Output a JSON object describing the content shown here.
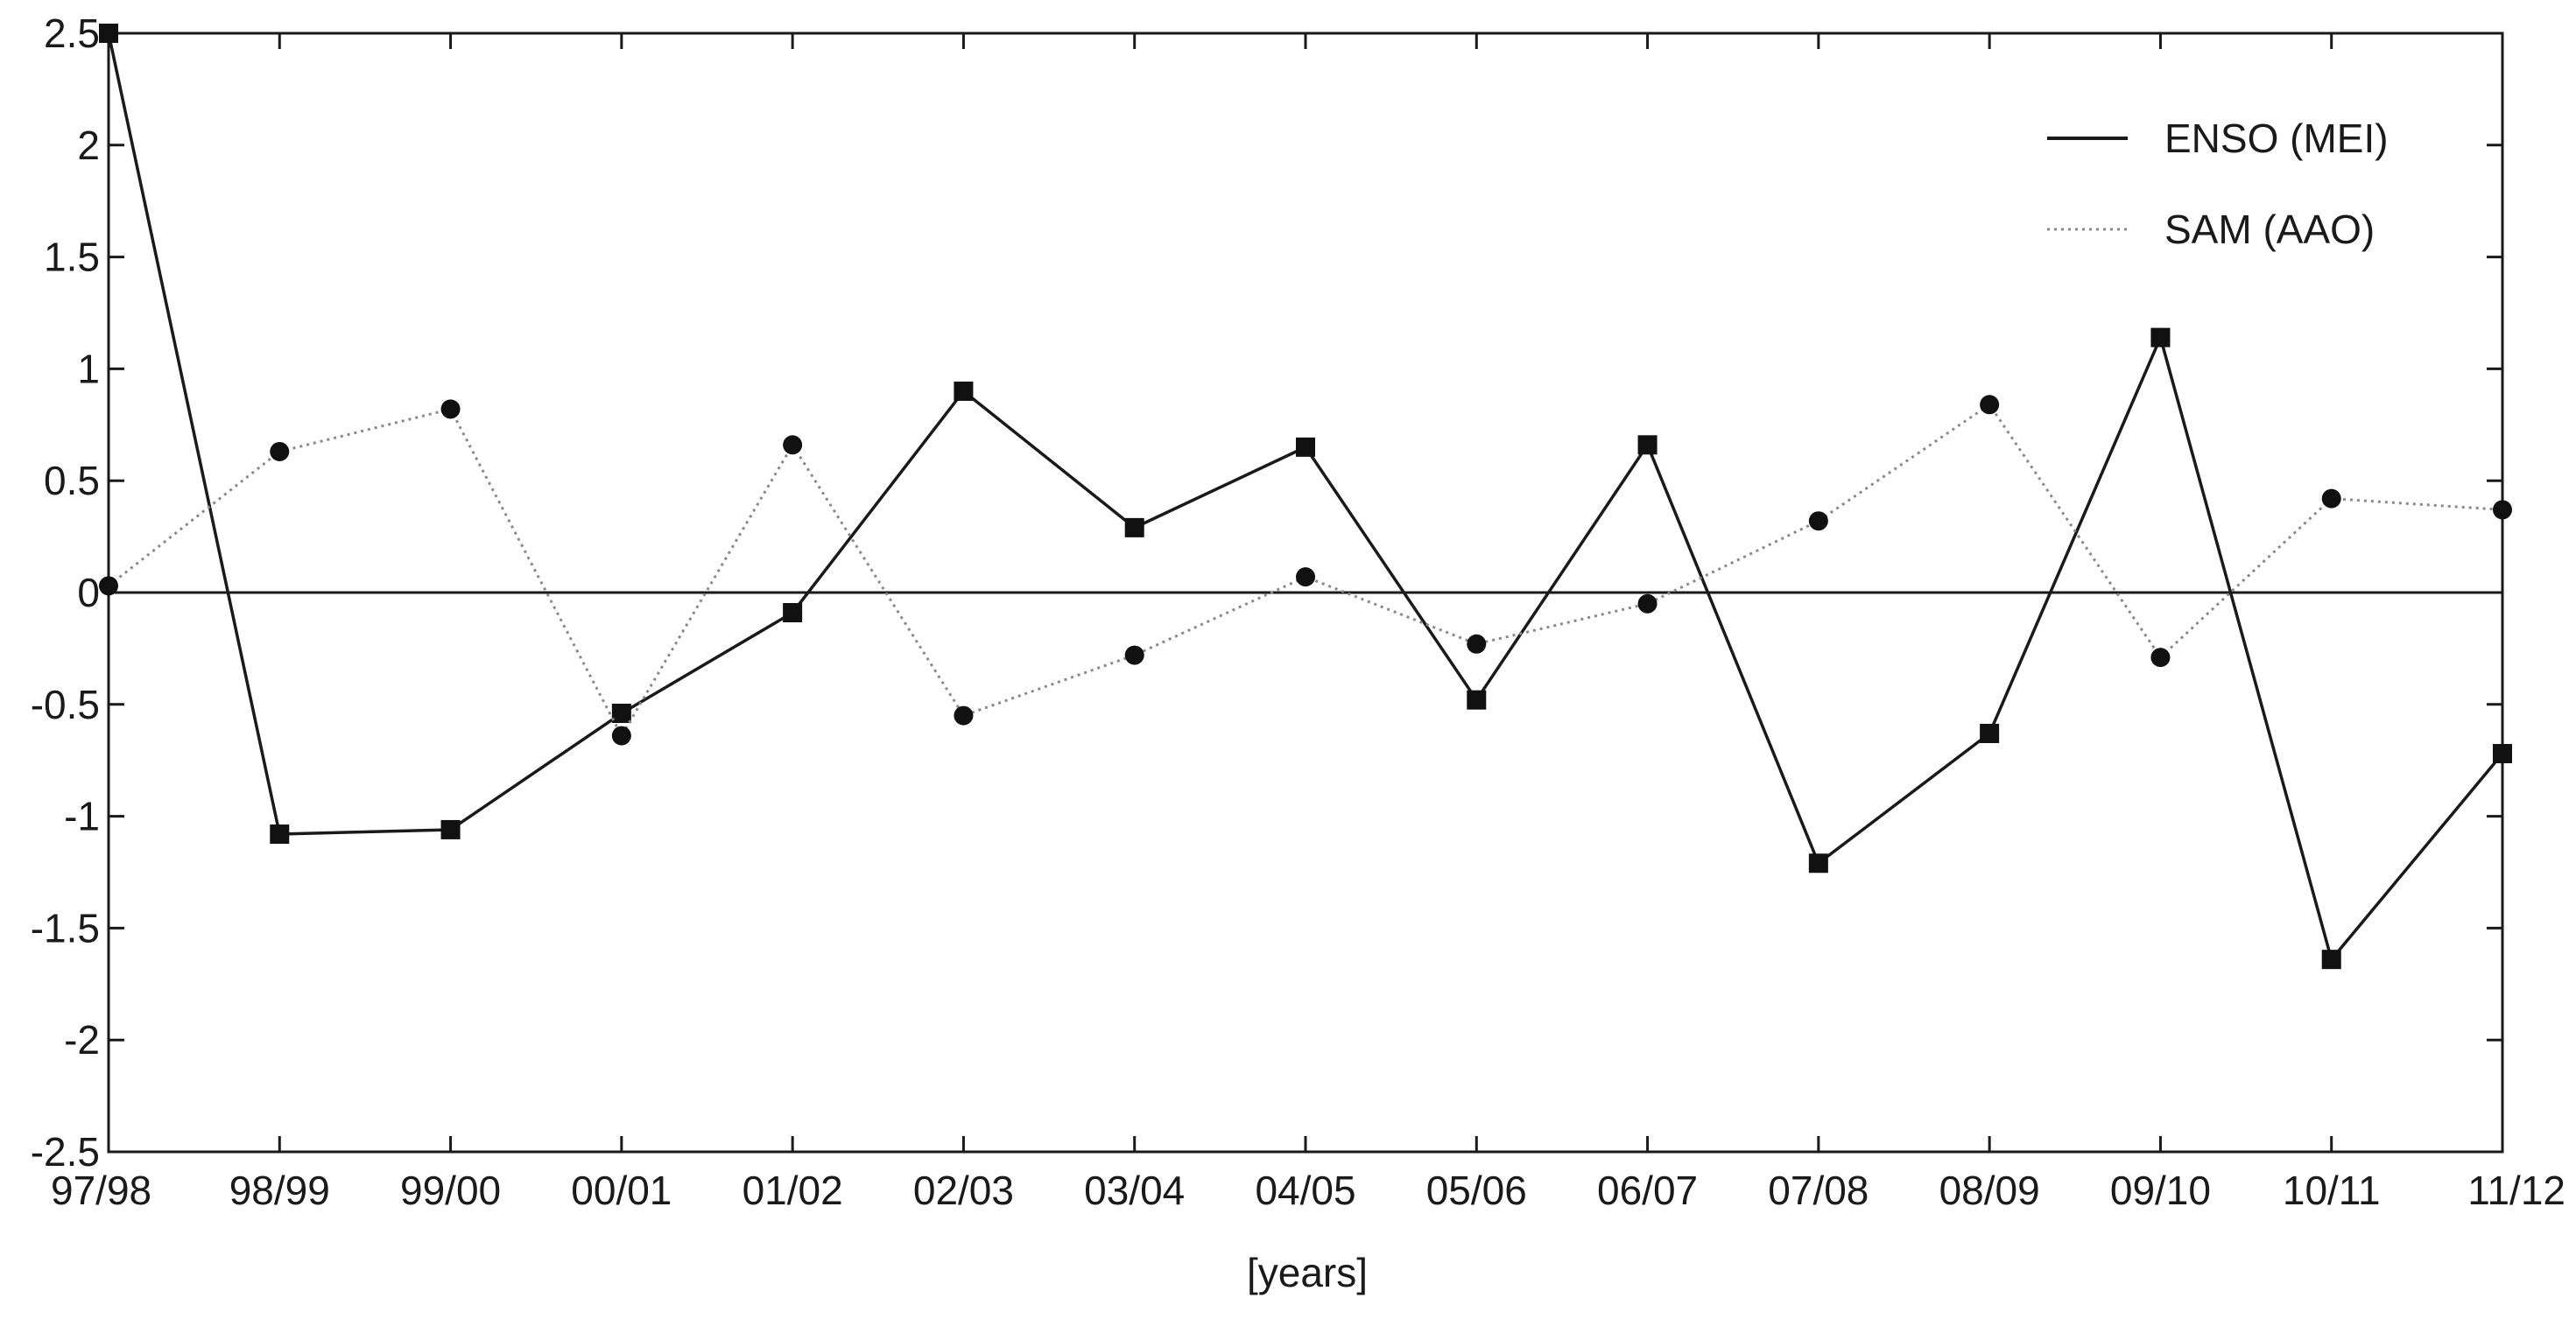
{
  "chart_data": {
    "type": "line",
    "title": "",
    "xlabel": "[years]",
    "ylabel": "",
    "categories": [
      "97/98",
      "98/99",
      "99/00",
      "00/01",
      "01/02",
      "02/03",
      "03/04",
      "04/05",
      "05/06",
      "06/07",
      "07/08",
      "08/09",
      "09/10",
      "10/11",
      "11/12"
    ],
    "ylim": [
      -2.5,
      2.5
    ],
    "yticks": [
      "2.5",
      "2",
      "1.5",
      "1",
      "0.5",
      "0",
      "-0.5",
      "-1",
      "-1.5",
      "-2",
      "-2.5"
    ],
    "yticks_values": [
      2.5,
      2,
      1.5,
      1,
      0.5,
      0,
      -0.5,
      -1,
      -1.5,
      -2,
      -2.5
    ],
    "grid": false,
    "zero_line": true,
    "legend_position": "top-right",
    "series": [
      {
        "name": "ENSO (MEI)",
        "line_style": "solid",
        "marker": "square",
        "color": "#1a1a1a",
        "values": [
          2.5,
          -1.08,
          -1.06,
          -0.54,
          -0.09,
          0.9,
          0.29,
          0.65,
          -0.48,
          0.66,
          -1.21,
          -0.63,
          1.14,
          -1.64,
          -0.72
        ]
      },
      {
        "name": "SAM (AAO)",
        "line_style": "dotted",
        "marker": "circle",
        "color": "#8a8a8a",
        "values": [
          0.03,
          0.63,
          0.82,
          -0.64,
          0.66,
          -0.55,
          -0.28,
          0.07,
          -0.23,
          -0.05,
          0.32,
          0.84,
          -0.29,
          0.42,
          0.37
        ]
      }
    ]
  }
}
